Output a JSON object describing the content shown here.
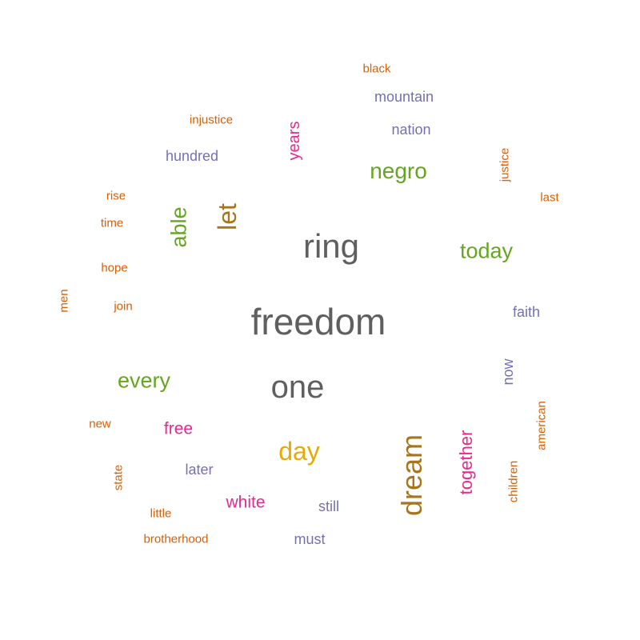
{
  "colors": {
    "gray": "#5f5f5f",
    "green": "#66a61e",
    "purple": "#7570b3",
    "orange": "#d95f02",
    "pink": "#e7298a",
    "gold": "#e6ab02",
    "brown": "#a6761d"
  },
  "words": [
    {
      "text": "freedom",
      "color": "gray"
    },
    {
      "text": "ring",
      "color": "gray"
    },
    {
      "text": "one",
      "color": "gray"
    },
    {
      "text": "dream",
      "color": "brown"
    },
    {
      "text": "let",
      "color": "brown"
    },
    {
      "text": "day",
      "color": "gold"
    },
    {
      "text": "negro",
      "color": "green"
    },
    {
      "text": "today",
      "color": "green"
    },
    {
      "text": "every",
      "color": "green"
    },
    {
      "text": "able",
      "color": "green"
    },
    {
      "text": "together",
      "color": "pink"
    },
    {
      "text": "years",
      "color": "pink"
    },
    {
      "text": "free",
      "color": "pink"
    },
    {
      "text": "white",
      "color": "pink"
    },
    {
      "text": "mountain",
      "color": "purple"
    },
    {
      "text": "nation",
      "color": "purple"
    },
    {
      "text": "hundred",
      "color": "purple"
    },
    {
      "text": "faith",
      "color": "purple"
    },
    {
      "text": "now",
      "color": "purple"
    },
    {
      "text": "later",
      "color": "purple"
    },
    {
      "text": "still",
      "color": "purple"
    },
    {
      "text": "must",
      "color": "purple"
    },
    {
      "text": "black",
      "color": "orange"
    },
    {
      "text": "injustice",
      "color": "orange"
    },
    {
      "text": "justice",
      "color": "orange"
    },
    {
      "text": "last",
      "color": "orange"
    },
    {
      "text": "rise",
      "color": "orange"
    },
    {
      "text": "time",
      "color": "orange"
    },
    {
      "text": "hope",
      "color": "orange"
    },
    {
      "text": "join",
      "color": "orange"
    },
    {
      "text": "men",
      "color": "orange"
    },
    {
      "text": "new",
      "color": "orange"
    },
    {
      "text": "american",
      "color": "orange"
    },
    {
      "text": "state",
      "color": "orange"
    },
    {
      "text": "children",
      "color": "orange"
    },
    {
      "text": "little",
      "color": "orange"
    },
    {
      "text": "brotherhood",
      "color": "orange"
    }
  ]
}
